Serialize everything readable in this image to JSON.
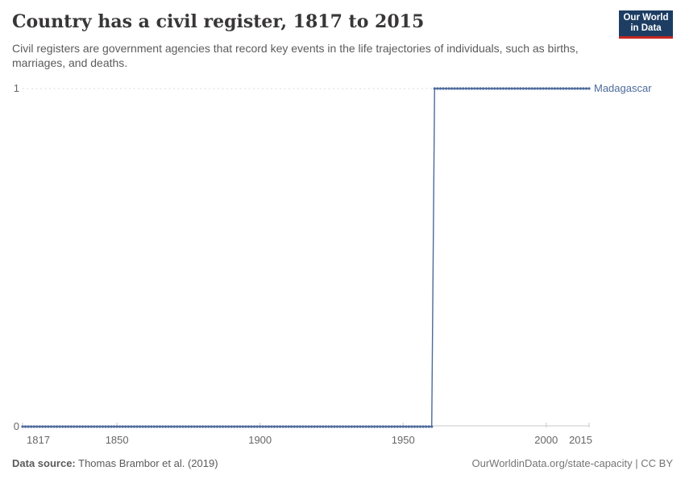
{
  "header": {
    "title": "Country has a civil register, 1817 to 2015",
    "subtitle": "Civil registers are government agencies that record key events in the life trajectories of individuals, such as births, marriages, and deaths.",
    "logo": {
      "line1": "Our World",
      "line2": "in Data",
      "bg_color": "#1d3d63",
      "accent_color": "#c5281f"
    }
  },
  "chart_data": {
    "type": "line",
    "title": "Country has a civil register, 1817 to 2015",
    "xlabel": "",
    "ylabel": "",
    "xlim": [
      1817,
      2015
    ],
    "ylim": [
      0,
      1
    ],
    "x_ticks": [
      1817,
      1850,
      1900,
      1950,
      2000,
      2015
    ],
    "y_ticks": [
      0,
      1
    ],
    "grid": "dashed horizontal gridline at y=1, solid axis line at y=0",
    "legend_position": "label at end of line",
    "colors": {
      "gridline": "#d9d9d9",
      "axis_line": "#c8c8c8",
      "tick_label": "#666666"
    },
    "series": [
      {
        "name": "Madagascar",
        "color": "#4C6A9C",
        "step": true,
        "marker_every_year": true,
        "segments": [
          {
            "start_year": 1817,
            "end_year": 1960,
            "value": 0
          },
          {
            "start_year": 1961,
            "end_year": 2015,
            "value": 1
          }
        ]
      }
    ]
  },
  "footer": {
    "source_label": "Data source:",
    "source_value": "Thomas Brambor et al. (2019)",
    "credit": "OurWorldinData.org/state-capacity | CC BY"
  }
}
